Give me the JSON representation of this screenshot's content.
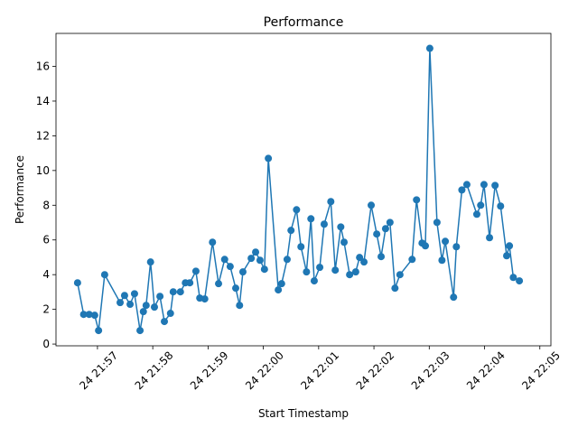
{
  "chart_data": {
    "type": "line",
    "title": "Performance",
    "x_label": "Start Timestamp",
    "y_label": "Performance",
    "x": [
      1316.64,
      1316.75,
      1316.85,
      1316.95,
      1317.02,
      1317.13,
      1317.41,
      1317.49,
      1317.59,
      1317.67,
      1317.77,
      1317.83,
      1317.88,
      1317.96,
      1318.03,
      1318.13,
      1318.21,
      1318.32,
      1318.37,
      1318.5,
      1318.59,
      1318.67,
      1318.78,
      1318.85,
      1318.94,
      1319.08,
      1319.19,
      1319.3,
      1319.4,
      1319.5,
      1319.57,
      1319.63,
      1319.78,
      1319.86,
      1319.94,
      1320.02,
      1320.09,
      1320.27,
      1320.33,
      1320.43,
      1320.5,
      1320.6,
      1320.68,
      1320.78,
      1320.86,
      1320.92,
      1321.02,
      1321.1,
      1321.22,
      1321.3,
      1321.4,
      1321.46,
      1321.56,
      1321.67,
      1321.74,
      1321.82,
      1321.95,
      1322.05,
      1322.13,
      1322.21,
      1322.29,
      1322.38,
      1322.47,
      1322.69,
      1322.77,
      1322.87,
      1322.93,
      1323.01,
      1323.14,
      1323.23,
      1323.29,
      1323.44,
      1323.49,
      1323.59,
      1323.68,
      1323.86,
      1323.93,
      1323.99,
      1324.09,
      1324.19,
      1324.29,
      1324.4,
      1324.45,
      1324.52,
      1324.63
    ],
    "series": [
      {
        "name": "Performance",
        "color": "#1f77b4",
        "values": [
          3.53,
          1.71,
          1.71,
          1.66,
          0.78,
          4.0,
          2.39,
          2.8,
          2.29,
          2.9,
          0.78,
          1.87,
          2.23,
          4.73,
          2.13,
          2.75,
          1.3,
          1.77,
          3.01,
          3.01,
          3.53,
          3.53,
          4.2,
          2.65,
          2.6,
          5.87,
          3.48,
          4.88,
          4.47,
          3.22,
          2.23,
          4.16,
          4.94,
          5.3,
          4.83,
          4.31,
          10.7,
          3.12,
          3.48,
          4.88,
          6.55,
          7.74,
          5.61,
          4.16,
          7.22,
          3.64,
          4.42,
          6.91,
          8.21,
          4.26,
          6.75,
          5.87,
          4.0,
          4.16,
          4.99,
          4.73,
          8.0,
          6.34,
          5.04,
          6.65,
          7.01,
          3.22,
          4.0,
          4.88,
          8.31,
          5.82,
          5.66,
          17.04,
          7.01,
          4.83,
          5.92,
          2.7,
          5.61,
          8.88,
          9.19,
          7.48,
          8.0,
          9.19,
          6.13,
          9.14,
          7.95,
          5.09,
          5.66,
          3.84,
          3.64
        ]
      }
    ],
    "xlim": [
      1316.25,
      1325.2
    ],
    "xticks": [
      {
        "value": 1317,
        "label": "24 21:57"
      },
      {
        "value": 1318,
        "label": "24 21:58"
      },
      {
        "value": 1319,
        "label": "24 21:59"
      },
      {
        "value": 1320,
        "label": "24 22:00"
      },
      {
        "value": 1321,
        "label": "24 22:01"
      },
      {
        "value": 1322,
        "label": "24 22:02"
      },
      {
        "value": 1323,
        "label": "24 22:03"
      },
      {
        "value": 1324,
        "label": "24 22:04"
      },
      {
        "value": 1325,
        "label": "24 22:05"
      }
    ],
    "ylim": [
      -0.1,
      17.9
    ],
    "yticks": [
      0,
      2,
      4,
      6,
      8,
      10,
      12,
      14,
      16
    ],
    "markers": true
  }
}
